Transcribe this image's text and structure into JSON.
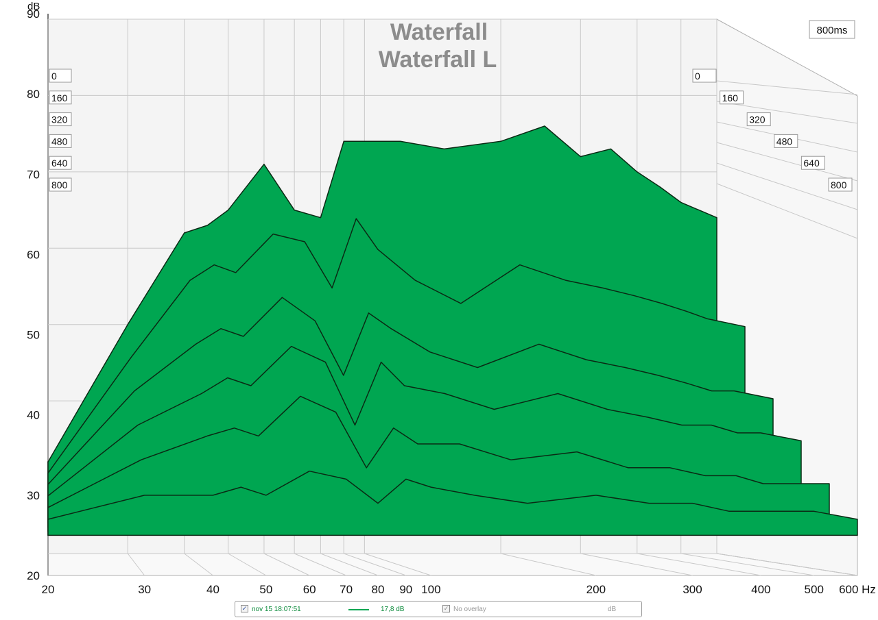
{
  "chart_data": {
    "type": "area",
    "title": "Waterfall",
    "subtitle": "Waterfall L",
    "ylabel": "dB",
    "xlabel": "Hz",
    "time_label": "800ms",
    "xscale": "log",
    "xlim": [
      20,
      600
    ],
    "ylim": [
      20,
      90
    ],
    "yticks": [
      "90",
      "80",
      "70",
      "60",
      "50",
      "40",
      "30",
      "20"
    ],
    "xticks": [
      {
        "v": 20,
        "t": "20"
      },
      {
        "v": 30,
        "t": "30"
      },
      {
        "v": 40,
        "t": "40"
      },
      {
        "v": 50,
        "t": "50"
      },
      {
        "v": 60,
        "t": "60"
      },
      {
        "v": 70,
        "t": "70"
      },
      {
        "v": 80,
        "t": "80"
      },
      {
        "v": 90,
        "t": "90"
      },
      {
        "v": 100,
        "t": "100"
      },
      {
        "v": 200,
        "t": "200"
      },
      {
        "v": 300,
        "t": "300"
      },
      {
        "v": 400,
        "t": "400"
      },
      {
        "v": 500,
        "t": "500"
      },
      {
        "v": 600,
        "t": "600 Hz"
      }
    ],
    "time_ticks_ms": [
      "0",
      "160",
      "320",
      "480",
      "640",
      "800"
    ],
    "fill_color": "#00a651",
    "line_color": "#0a2a14",
    "grid": true,
    "series": [
      {
        "name": "0 ms",
        "time_ms": 0,
        "x": [
          20,
          30,
          40,
          45,
          50,
          60,
          70,
          80,
          90,
          100,
          120,
          150,
          200,
          250,
          300,
          350,
          400,
          450,
          500,
          600
        ],
        "y": [
          32,
          50,
          62,
          63,
          65,
          71,
          65,
          64,
          74,
          74,
          74,
          73,
          74,
          76,
          72,
          73,
          70,
          68,
          66,
          64
        ]
      },
      {
        "name": "160 ms",
        "time_ms": 160,
        "x": [
          20,
          30,
          40,
          45,
          50,
          60,
          70,
          80,
          90,
          100,
          120,
          150,
          200,
          250,
          300,
          350,
          400,
          450,
          500,
          600
        ],
        "y": [
          31,
          46,
          56,
          58,
          57,
          62,
          61,
          55,
          64,
          60,
          56,
          53,
          58,
          56,
          55,
          54,
          53,
          52,
          51,
          50
        ]
      },
      {
        "name": "320 ms",
        "time_ms": 320,
        "x": [
          20,
          30,
          40,
          45,
          50,
          60,
          70,
          80,
          90,
          100,
          120,
          150,
          200,
          250,
          300,
          350,
          400,
          450,
          500,
          600
        ],
        "y": [
          30,
          42,
          48,
          50,
          49,
          54,
          51,
          44,
          52,
          50,
          47,
          45,
          48,
          46,
          45,
          44,
          43,
          42,
          42,
          41
        ]
      },
      {
        "name": "480 ms",
        "time_ms": 480,
        "x": [
          20,
          30,
          40,
          45,
          50,
          60,
          70,
          80,
          90,
          100,
          120,
          150,
          200,
          250,
          300,
          350,
          400,
          450,
          500,
          600
        ],
        "y": [
          29,
          38,
          42,
          44,
          43,
          48,
          46,
          38,
          46,
          43,
          42,
          40,
          42,
          40,
          39,
          38,
          38,
          37,
          37,
          36
        ]
      },
      {
        "name": "640 ms",
        "time_ms": 640,
        "x": [
          20,
          30,
          40,
          45,
          50,
          60,
          70,
          80,
          90,
          100,
          120,
          150,
          200,
          250,
          300,
          350,
          400,
          450,
          500,
          600
        ],
        "y": [
          28,
          34,
          37,
          38,
          37,
          42,
          40,
          33,
          38,
          36,
          36,
          34,
          35,
          33,
          33,
          32,
          32,
          31,
          31,
          31
        ]
      },
      {
        "name": "800 ms",
        "time_ms": 800,
        "x": [
          20,
          30,
          40,
          45,
          50,
          60,
          70,
          80,
          90,
          100,
          120,
          150,
          200,
          250,
          300,
          350,
          400,
          450,
          500,
          600
        ],
        "y": [
          27,
          30,
          30,
          31,
          30,
          33,
          32,
          29,
          32,
          31,
          30,
          29,
          30,
          29,
          29,
          28,
          28,
          28,
          28,
          27
        ]
      }
    ]
  },
  "legend": {
    "item1_date": "nov 15 18:07:51",
    "item1_value": "17,8 dB",
    "item2_label": "No overlay",
    "unit": "dB",
    "item1_checked": "✓",
    "item2_checked": "✓"
  }
}
